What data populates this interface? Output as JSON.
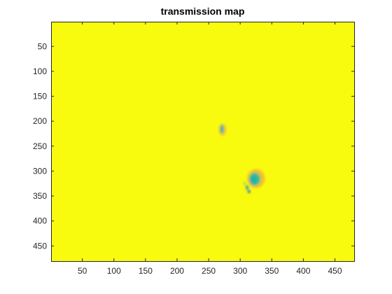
{
  "chart_data": {
    "type": "heatmap",
    "title": "transmission map",
    "xlabel": "",
    "ylabel": "",
    "xlim": [
      0.5,
      480.5
    ],
    "ylim": [
      0.5,
      480.5
    ],
    "y_reversed": true,
    "xticks": [
      50,
      100,
      150,
      200,
      250,
      300,
      350,
      400,
      450
    ],
    "yticks": [
      50,
      100,
      150,
      200,
      250,
      300,
      350,
      400,
      450
    ],
    "grid": false,
    "colormap": "parula",
    "background_color": "#f9fb0e",
    "features": [
      {
        "x": 272,
        "y": 217,
        "rx": 6,
        "ry": 12,
        "color": "#f5b43a",
        "opacity": 0.8
      },
      {
        "x": 271,
        "y": 216,
        "rx": 3,
        "ry": 9,
        "color": "#2ab7aa"
      },
      {
        "x": 325,
        "y": 315,
        "rx": 14,
        "ry": 19,
        "color": "#f2b13a",
        "opacity": 0.85
      },
      {
        "x": 323,
        "y": 316,
        "rx": 9,
        "ry": 13,
        "color": "#32c08e"
      },
      {
        "x": 321,
        "y": 318,
        "rx": 5,
        "ry": 8,
        "color": "#20b1ab"
      },
      {
        "x": 311,
        "y": 333,
        "rx": 2,
        "ry": 5,
        "color": "#1f8bd5"
      },
      {
        "x": 314,
        "y": 341,
        "rx": 2,
        "ry": 3,
        "color": "#1563d6"
      },
      {
        "x": 307,
        "y": 325,
        "rx": 1,
        "ry": 3,
        "color": "#35b98f"
      }
    ]
  }
}
